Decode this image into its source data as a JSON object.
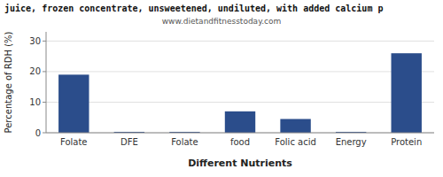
{
  "chart_data": {
    "type": "bar",
    "title": "juice, frozen concentrate, unsweetened, undiluted, with added calcium p",
    "subtitle": "www.dietandfitnesstoday.com",
    "xlabel": "Different Nutrients",
    "ylabel": "Percentage of RDH (%)",
    "categories": [
      "Folate",
      "DFE",
      "Folate",
      "food",
      "Folic acid",
      "Energy",
      "Protein"
    ],
    "values": [
      19,
      0.3,
      0.3,
      7,
      4.5,
      0.3,
      26
    ],
    "color": "#2b4d8b",
    "ylim": [
      0,
      33
    ],
    "yticks": [
      0,
      10,
      20,
      30
    ],
    "grid": true
  }
}
